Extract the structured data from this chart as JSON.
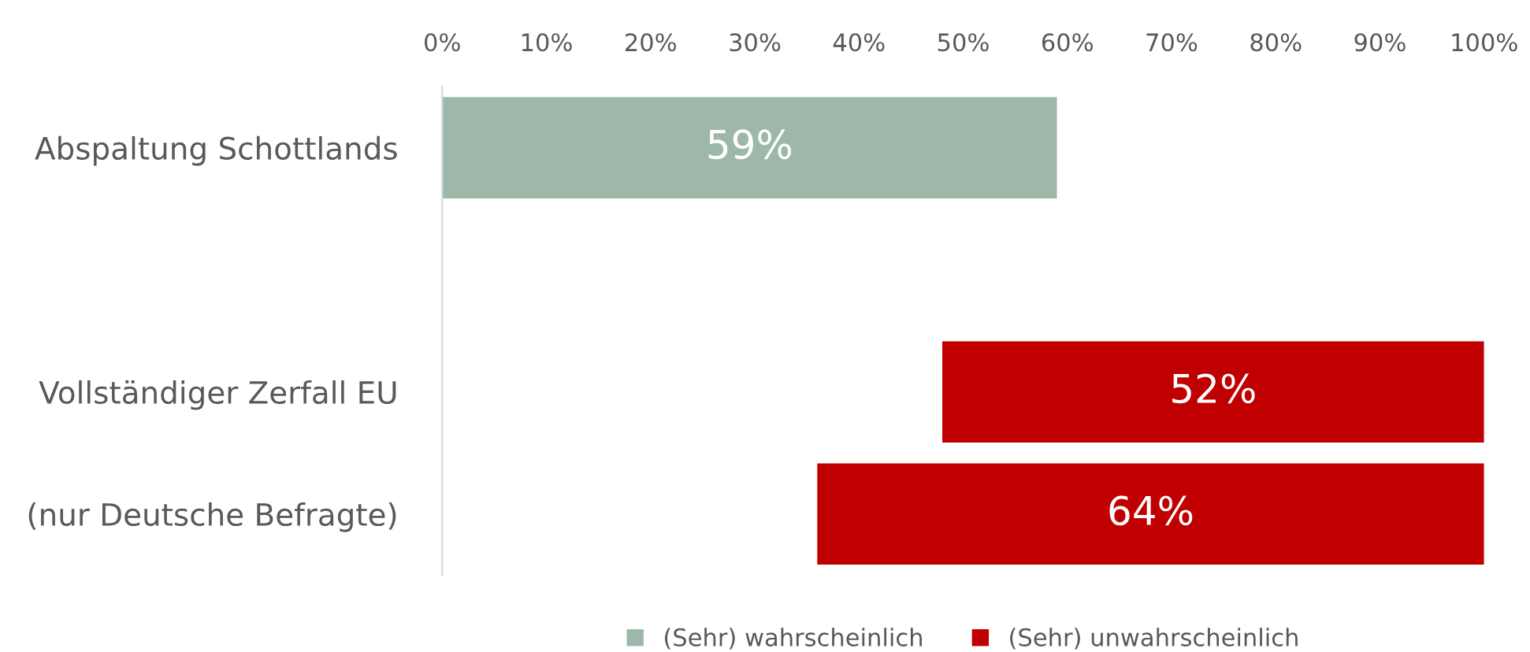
{
  "chart_data": {
    "type": "bar",
    "orientation": "horizontal",
    "categories": [
      "Abspaltung Schottlands",
      null,
      "Vollständiger Zerfall EU",
      "(nur Deutsche Befragte)"
    ],
    "series": [
      {
        "name": "(Sehr) wahrscheinlich",
        "color": "#9db8a8",
        "values": [
          59,
          null,
          null,
          null
        ],
        "value_labels": [
          "59%",
          null,
          null,
          null
        ]
      },
      {
        "name": "(Sehr) unwahrscheinlich",
        "color": "#c00000",
        "values": [
          null,
          null,
          52,
          64
        ],
        "base": [
          null,
          null,
          48,
          36
        ],
        "value_labels": [
          null,
          null,
          "52%",
          "64%"
        ]
      }
    ],
    "xlim": [
      0,
      100
    ],
    "xticks": [
      {
        "value": 0,
        "label": "0%"
      },
      {
        "value": 10,
        "label": "10%"
      },
      {
        "value": 20,
        "label": "20%"
      },
      {
        "value": 30,
        "label": "30%"
      },
      {
        "value": 40,
        "label": "40%"
      },
      {
        "value": 50,
        "label": "50%"
      },
      {
        "value": 60,
        "label": "60%"
      },
      {
        "value": 70,
        "label": "70%"
      },
      {
        "value": 80,
        "label": "80%"
      },
      {
        "value": 90,
        "label": "90%"
      },
      {
        "value": 100,
        "label": "100%"
      }
    ],
    "grid": false,
    "legend": "bottom"
  }
}
